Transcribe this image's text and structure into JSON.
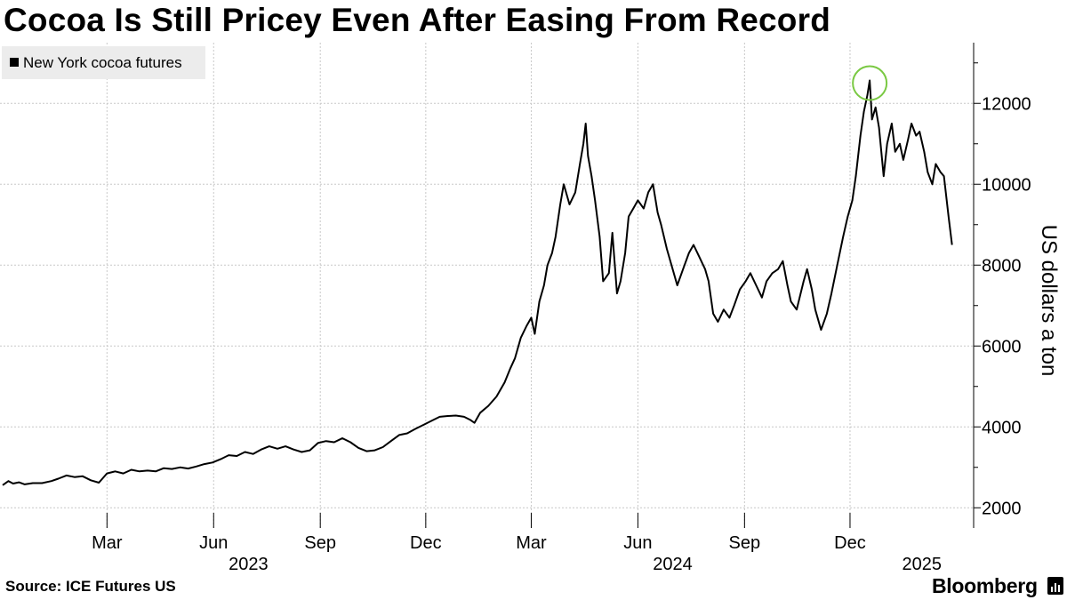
{
  "chart_data": {
    "type": "line",
    "title": "Cocoa Is Still Pricey Even After Easing From Record",
    "ylabel": "US dollars a ton",
    "ylim": [
      1500,
      13500
    ],
    "yticks": [
      2000,
      4000,
      6000,
      8000,
      10000,
      12000
    ],
    "ytick_labels": [
      "2000",
      "4000",
      "6000",
      "8000",
      "10000",
      "12000"
    ],
    "x_start": "2022-12-01",
    "x_end": "2025-02-28",
    "month_ticks": [
      {
        "date": "2023-03-01",
        "label": "Mar"
      },
      {
        "date": "2023-06-01",
        "label": "Jun"
      },
      {
        "date": "2023-09-01",
        "label": "Sep"
      },
      {
        "date": "2023-12-01",
        "label": "Dec"
      },
      {
        "date": "2024-03-01",
        "label": "Mar"
      },
      {
        "date": "2024-06-01",
        "label": "Jun"
      },
      {
        "date": "2024-09-01",
        "label": "Sep"
      },
      {
        "date": "2024-12-01",
        "label": "Dec"
      }
    ],
    "year_labels": [
      {
        "date": "2023-07-01",
        "label": "2023"
      },
      {
        "date": "2024-07-01",
        "label": "2024"
      },
      {
        "date": "2025-02-01",
        "label": "2025"
      }
    ],
    "legend": [
      {
        "name": "New York cocoa futures",
        "color": "#000000"
      }
    ],
    "grid": true,
    "legend_position": "top-left",
    "highlight": {
      "date": "2024-12-18",
      "value": 12565,
      "color": "#7ac943"
    },
    "series": [
      {
        "name": "New York cocoa futures",
        "color": "#000000",
        "points": [
          [
            "2022-12-01",
            2560
          ],
          [
            "2022-12-06",
            2660
          ],
          [
            "2022-12-10",
            2600
          ],
          [
            "2022-12-15",
            2630
          ],
          [
            "2022-12-20",
            2580
          ],
          [
            "2022-12-27",
            2610
          ],
          [
            "2023-01-04",
            2610
          ],
          [
            "2023-01-12",
            2660
          ],
          [
            "2023-01-18",
            2720
          ],
          [
            "2023-01-25",
            2800
          ],
          [
            "2023-02-01",
            2760
          ],
          [
            "2023-02-08",
            2780
          ],
          [
            "2023-02-15",
            2680
          ],
          [
            "2023-02-22",
            2620
          ],
          [
            "2023-03-01",
            2850
          ],
          [
            "2023-03-08",
            2900
          ],
          [
            "2023-03-15",
            2850
          ],
          [
            "2023-03-22",
            2940
          ],
          [
            "2023-03-29",
            2900
          ],
          [
            "2023-04-05",
            2920
          ],
          [
            "2023-04-12",
            2900
          ],
          [
            "2023-04-19",
            2980
          ],
          [
            "2023-04-26",
            2960
          ],
          [
            "2023-05-03",
            3000
          ],
          [
            "2023-05-10",
            2970
          ],
          [
            "2023-05-17",
            3020
          ],
          [
            "2023-05-24",
            3080
          ],
          [
            "2023-05-31",
            3120
          ],
          [
            "2023-06-07",
            3200
          ],
          [
            "2023-06-14",
            3300
          ],
          [
            "2023-06-21",
            3280
          ],
          [
            "2023-06-28",
            3380
          ],
          [
            "2023-07-05",
            3330
          ],
          [
            "2023-07-12",
            3440
          ],
          [
            "2023-07-19",
            3520
          ],
          [
            "2023-07-26",
            3460
          ],
          [
            "2023-08-02",
            3520
          ],
          [
            "2023-08-09",
            3440
          ],
          [
            "2023-08-16",
            3380
          ],
          [
            "2023-08-23",
            3420
          ],
          [
            "2023-08-30",
            3600
          ],
          [
            "2023-09-06",
            3650
          ],
          [
            "2023-09-13",
            3620
          ],
          [
            "2023-09-20",
            3720
          ],
          [
            "2023-09-27",
            3620
          ],
          [
            "2023-10-04",
            3480
          ],
          [
            "2023-10-11",
            3400
          ],
          [
            "2023-10-18",
            3420
          ],
          [
            "2023-10-25",
            3500
          ],
          [
            "2023-11-01",
            3650
          ],
          [
            "2023-11-08",
            3800
          ],
          [
            "2023-11-15",
            3840
          ],
          [
            "2023-11-22",
            3950
          ],
          [
            "2023-11-29",
            4050
          ],
          [
            "2023-12-06",
            4150
          ],
          [
            "2023-12-13",
            4250
          ],
          [
            "2023-12-20",
            4270
          ],
          [
            "2023-12-27",
            4280
          ],
          [
            "2024-01-03",
            4250
          ],
          [
            "2024-01-08",
            4180
          ],
          [
            "2024-01-12",
            4100
          ],
          [
            "2024-01-17",
            4350
          ],
          [
            "2024-01-24",
            4520
          ],
          [
            "2024-01-31",
            4750
          ],
          [
            "2024-02-07",
            5100
          ],
          [
            "2024-02-12",
            5450
          ],
          [
            "2024-02-16",
            5700
          ],
          [
            "2024-02-21",
            6200
          ],
          [
            "2024-02-26",
            6500
          ],
          [
            "2024-03-01",
            6700
          ],
          [
            "2024-03-04",
            6300
          ],
          [
            "2024-03-08",
            7100
          ],
          [
            "2024-03-12",
            7500
          ],
          [
            "2024-03-15",
            8000
          ],
          [
            "2024-03-19",
            8300
          ],
          [
            "2024-03-22",
            8700
          ],
          [
            "2024-03-26",
            9500
          ],
          [
            "2024-03-29",
            10000
          ],
          [
            "2024-04-03",
            9500
          ],
          [
            "2024-04-08",
            9800
          ],
          [
            "2024-04-12",
            10500
          ],
          [
            "2024-04-15",
            11000
          ],
          [
            "2024-04-17",
            11500
          ],
          [
            "2024-04-19",
            10700
          ],
          [
            "2024-04-22",
            10200
          ],
          [
            "2024-04-25",
            9600
          ],
          [
            "2024-04-29",
            8700
          ],
          [
            "2024-05-02",
            7600
          ],
          [
            "2024-05-07",
            7800
          ],
          [
            "2024-05-10",
            8800
          ],
          [
            "2024-05-14",
            7300
          ],
          [
            "2024-05-17",
            7600
          ],
          [
            "2024-05-21",
            8300
          ],
          [
            "2024-05-24",
            9200
          ],
          [
            "2024-05-28",
            9400
          ],
          [
            "2024-06-01",
            9600
          ],
          [
            "2024-06-06",
            9400
          ],
          [
            "2024-06-10",
            9800
          ],
          [
            "2024-06-14",
            10000
          ],
          [
            "2024-06-18",
            9300
          ],
          [
            "2024-06-21",
            9000
          ],
          [
            "2024-06-26",
            8400
          ],
          [
            "2024-07-01",
            7900
          ],
          [
            "2024-07-05",
            7500
          ],
          [
            "2024-07-10",
            7900
          ],
          [
            "2024-07-15",
            8300
          ],
          [
            "2024-07-19",
            8500
          ],
          [
            "2024-07-24",
            8200
          ],
          [
            "2024-07-29",
            7900
          ],
          [
            "2024-08-01",
            7600
          ],
          [
            "2024-08-05",
            6800
          ],
          [
            "2024-08-09",
            6600
          ],
          [
            "2024-08-14",
            6900
          ],
          [
            "2024-08-19",
            6700
          ],
          [
            "2024-08-23",
            7000
          ],
          [
            "2024-08-28",
            7400
          ],
          [
            "2024-09-02",
            7600
          ],
          [
            "2024-09-06",
            7800
          ],
          [
            "2024-09-11",
            7500
          ],
          [
            "2024-09-16",
            7200
          ],
          [
            "2024-09-20",
            7600
          ],
          [
            "2024-09-25",
            7800
          ],
          [
            "2024-09-30",
            7900
          ],
          [
            "2024-10-04",
            8100
          ],
          [
            "2024-10-08",
            7500
          ],
          [
            "2024-10-11",
            7100
          ],
          [
            "2024-10-16",
            6900
          ],
          [
            "2024-10-22",
            7600
          ],
          [
            "2024-10-25",
            7900
          ],
          [
            "2024-10-29",
            7400
          ],
          [
            "2024-11-01",
            6900
          ],
          [
            "2024-11-06",
            6400
          ],
          [
            "2024-11-11",
            6800
          ],
          [
            "2024-11-15",
            7300
          ],
          [
            "2024-11-20",
            8000
          ],
          [
            "2024-11-25",
            8700
          ],
          [
            "2024-11-29",
            9200
          ],
          [
            "2024-12-03",
            9600
          ],
          [
            "2024-12-06",
            10200
          ],
          [
            "2024-12-10",
            11200
          ],
          [
            "2024-12-13",
            11800
          ],
          [
            "2024-12-16",
            12200
          ],
          [
            "2024-12-18",
            12565
          ],
          [
            "2024-12-20",
            11600
          ],
          [
            "2024-12-23",
            11900
          ],
          [
            "2024-12-26",
            11400
          ],
          [
            "2024-12-30",
            10200
          ],
          [
            "2025-01-02",
            11000
          ],
          [
            "2025-01-06",
            11500
          ],
          [
            "2025-01-09",
            10800
          ],
          [
            "2025-01-13",
            11000
          ],
          [
            "2025-01-16",
            10600
          ],
          [
            "2025-01-20",
            11100
          ],
          [
            "2025-01-23",
            11500
          ],
          [
            "2025-01-27",
            11200
          ],
          [
            "2025-01-30",
            11300
          ],
          [
            "2025-02-03",
            10800
          ],
          [
            "2025-02-06",
            10300
          ],
          [
            "2025-02-10",
            10000
          ],
          [
            "2025-02-13",
            10500
          ],
          [
            "2025-02-17",
            10300
          ],
          [
            "2025-02-20",
            10200
          ],
          [
            "2025-02-24",
            9200
          ],
          [
            "2025-02-27",
            8500
          ]
        ]
      }
    ]
  },
  "footer": {
    "source": "Source: ICE Futures US",
    "brand": "Bloomberg"
  }
}
